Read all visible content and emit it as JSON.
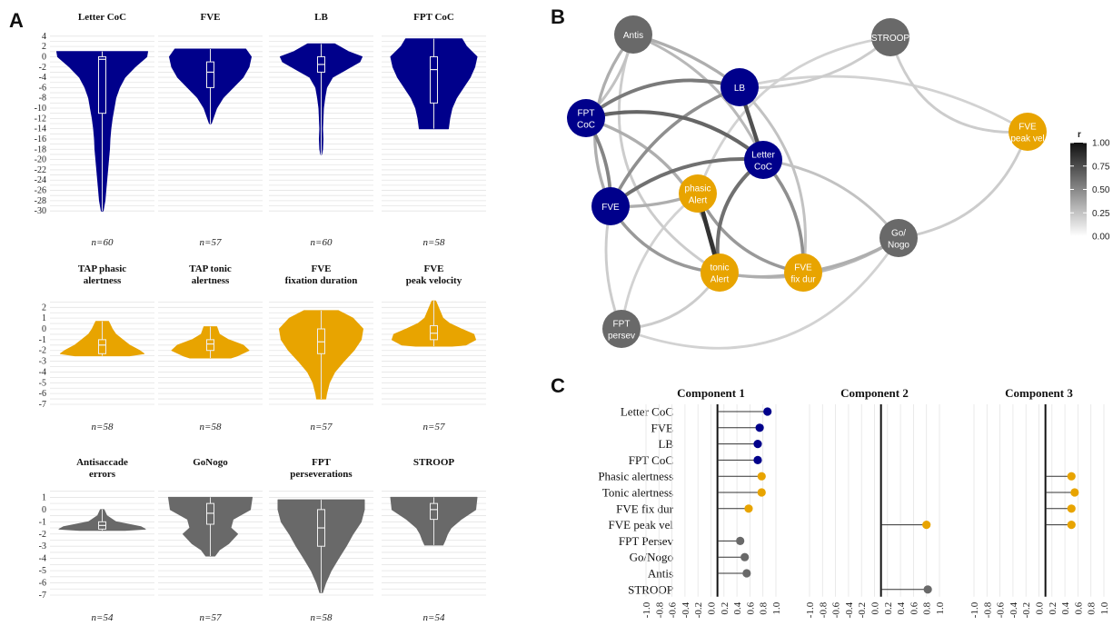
{
  "panel_labels": [
    "A",
    "B",
    "C"
  ],
  "colors": {
    "blue": "#00008b",
    "orange": "#e8a400",
    "gray": "#696969"
  },
  "chart_data": [
    {
      "type": "violin",
      "panel": "A",
      "subplots": [
        {
          "title": [
            "Letter CoC"
          ],
          "n": "n=60",
          "color": "blue",
          "ylim": [
            -30.5,
            4.5
          ],
          "ticks": [
            4,
            2,
            0,
            -2,
            -4,
            -6,
            -8,
            -10,
            -12,
            -14,
            -16,
            -18,
            -20,
            -22,
            -24,
            -26,
            -28,
            -30
          ],
          "min": -30,
          "max": 1,
          "q1": -11,
          "median": -0.5,
          "q3": 0
        },
        {
          "title": [
            "FVE"
          ],
          "n": "n=57",
          "color": "blue",
          "ylim": [
            -30.5,
            4.5
          ],
          "ticks": [],
          "min": -13,
          "max": 1.5,
          "q1": -6,
          "median": -3,
          "q3": -1
        },
        {
          "title": [
            "LB"
          ],
          "n": "n=60",
          "color": "blue",
          "ylim": [
            -30.5,
            4.5
          ],
          "ticks": [],
          "min": -19,
          "max": 2.5,
          "q1": -3,
          "median": -1.5,
          "q3": 0
        },
        {
          "title": [
            "FPT CoC"
          ],
          "n": "n=58",
          "color": "blue",
          "ylim": [
            -30.5,
            4.5
          ],
          "ticks": [],
          "min": -14,
          "max": 3.5,
          "q1": -9,
          "median": -2.5,
          "q3": 0
        },
        {
          "title": [
            "TAP phasic",
            "alertness"
          ],
          "n": "n=58",
          "color": "orange",
          "ylim": [
            -7,
            2.7
          ],
          "ticks": [
            2,
            1,
            0,
            -1,
            -2,
            -3,
            -4,
            -5,
            -6,
            -7
          ],
          "min": -2.5,
          "max": 0.7,
          "q1": -2.3,
          "median": -1.5,
          "q3": -1
        },
        {
          "title": [
            "TAP tonic",
            "alertness"
          ],
          "n": "n=58",
          "color": "orange",
          "ylim": [
            -7,
            2.7
          ],
          "ticks": [],
          "min": -2.7,
          "max": 0.2,
          "q1": -2,
          "median": -1.4,
          "q3": -1
        },
        {
          "title": [
            "FVE",
            "fixation duration"
          ],
          "n": "n=57",
          "color": "orange",
          "ylim": [
            -7,
            2.7
          ],
          "ticks": [],
          "min": -6.5,
          "max": 1.7,
          "q1": -2.3,
          "median": -1.2,
          "q3": 0
        },
        {
          "title": [
            "FVE",
            "peak velocity"
          ],
          "n": "n=57",
          "color": "orange",
          "ylim": [
            -7,
            2.7
          ],
          "ticks": [],
          "min": -1.6,
          "max": 2.6,
          "q1": -1,
          "median": -0.4,
          "q3": 0.3
        },
        {
          "title": [
            "Antisaccade",
            "errors"
          ],
          "n": "n=54",
          "color": "gray",
          "ylim": [
            -7,
            1.7
          ],
          "ticks": [
            1,
            0,
            -1,
            -2,
            -3,
            -4,
            -5,
            -6,
            -7
          ],
          "min": -1.7,
          "max": 0,
          "q1": -1.6,
          "median": -1.3,
          "q3": -1
        },
        {
          "title": [
            "GoNogo"
          ],
          "n": "n=57",
          "color": "gray",
          "ylim": [
            -7,
            1.7
          ],
          "ticks": [],
          "min": -3.8,
          "max": 1,
          "q1": -1.2,
          "median": -0.3,
          "q3": 0.5
        },
        {
          "title": [
            "FPT",
            "perseverations"
          ],
          "n": "n=58",
          "color": "gray",
          "ylim": [
            -7,
            1.7
          ],
          "ticks": [],
          "min": -6.8,
          "max": 0.8,
          "q1": -3,
          "median": -1.5,
          "q3": 0
        },
        {
          "title": [
            "STROOP"
          ],
          "n": "n=54",
          "color": "gray",
          "ylim": [
            -7,
            1.7
          ],
          "ticks": [],
          "min": -2.9,
          "max": 1,
          "q1": -0.8,
          "median": 0,
          "q3": 0.5
        }
      ]
    },
    {
      "type": "network",
      "panel": "B",
      "nodes": [
        {
          "id": "antis",
          "label": [
            "Antis"
          ],
          "color": "gray"
        },
        {
          "id": "stroop",
          "label": [
            "STROOP"
          ],
          "color": "gray"
        },
        {
          "id": "lb",
          "label": [
            "LB"
          ],
          "color": "blue"
        },
        {
          "id": "fptcoc",
          "label": [
            "FPT",
            "CoC"
          ],
          "color": "blue"
        },
        {
          "id": "fvepv",
          "label": [
            "FVE",
            "peak vel"
          ],
          "color": "orange"
        },
        {
          "id": "letter",
          "label": [
            "Letter",
            "CoC"
          ],
          "color": "blue"
        },
        {
          "id": "phasic",
          "label": [
            "phasic",
            "Alert"
          ],
          "color": "orange"
        },
        {
          "id": "fve",
          "label": [
            "FVE"
          ],
          "color": "blue"
        },
        {
          "id": "gonogo",
          "label": [
            "Go/",
            "Nogo"
          ],
          "color": "gray"
        },
        {
          "id": "tonic",
          "label": [
            "tonic",
            "Alert"
          ],
          "color": "orange"
        },
        {
          "id": "fvefd",
          "label": [
            "FVE",
            "fix dur"
          ],
          "color": "orange"
        },
        {
          "id": "fptpersev",
          "label": [
            "FPT",
            "persev"
          ],
          "color": "gray"
        }
      ],
      "edges": [
        {
          "from": "phasic",
          "to": "tonic",
          "r": 0.9
        },
        {
          "from": "lb",
          "to": "letter",
          "r": 0.75
        },
        {
          "from": "fptcoc",
          "to": "letter",
          "r": 0.65
        },
        {
          "from": "letter",
          "to": "fve",
          "r": 0.6
        },
        {
          "from": "letter",
          "to": "tonic",
          "r": 0.6
        },
        {
          "from": "fptcoc",
          "to": "lb",
          "r": 0.55
        },
        {
          "from": "fve",
          "to": "fptcoc",
          "r": 0.5
        },
        {
          "from": "fve",
          "to": "lb",
          "r": 0.45
        },
        {
          "from": "letter",
          "to": "fvefd",
          "r": 0.45
        },
        {
          "from": "fve",
          "to": "tonic",
          "r": 0.4
        },
        {
          "from": "phasic",
          "to": "fvefd",
          "r": 0.4
        },
        {
          "from": "tonic",
          "to": "fvefd",
          "r": 0.3
        },
        {
          "from": "fve",
          "to": "phasic",
          "r": 0.3
        },
        {
          "from": "antis",
          "to": "lb",
          "r": 0.3
        },
        {
          "from": "antis",
          "to": "fve",
          "r": 0.3
        },
        {
          "from": "fvefd",
          "to": "gonogo",
          "r": 0.3
        },
        {
          "from": "tonic",
          "to": "gonogo",
          "r": 0.25
        },
        {
          "from": "fptcoc",
          "to": "tonic",
          "r": 0.3
        },
        {
          "from": "antis",
          "to": "letter",
          "r": 0.25
        },
        {
          "from": "letter",
          "to": "gonogo",
          "r": 0.2
        },
        {
          "from": "fvepv",
          "to": "stroop",
          "r": 0.15
        },
        {
          "from": "fvepv",
          "to": "gonogo",
          "r": 0.15
        },
        {
          "from": "stroop",
          "to": "lb",
          "r": 0.15
        },
        {
          "from": "stroop",
          "to": "phasic",
          "r": 0.12
        },
        {
          "from": "fptpersev",
          "to": "fve",
          "r": 0.15
        },
        {
          "from": "fptpersev",
          "to": "tonic",
          "r": 0.15
        },
        {
          "from": "fptpersev",
          "to": "phasic",
          "r": 0.12
        },
        {
          "from": "fptpersev",
          "to": "gonogo",
          "r": 0.12
        },
        {
          "from": "antis",
          "to": "fptcoc",
          "r": 0.2
        },
        {
          "from": "antis",
          "to": "tonic",
          "r": 0.15
        },
        {
          "from": "lb",
          "to": "fvepv",
          "r": 0.12
        },
        {
          "from": "lb",
          "to": "fvefd",
          "r": 0.2
        }
      ],
      "legend": {
        "title": "r",
        "ticks": [
          "1.00",
          "0.75",
          "0.50",
          "0.25",
          "0.00"
        ],
        "placement": "right"
      }
    },
    {
      "type": "lollipop",
      "panel": "C",
      "categories": [
        "Letter CoC",
        "FVE",
        "LB",
        "FPT CoC",
        "Phasic alertness",
        "Tonic alertness",
        "FVE fix dur",
        "FVE peak vel",
        "FPT Persev",
        "Go/Nogo",
        "Antis",
        "STROOP"
      ],
      "category_colors": [
        "blue",
        "blue",
        "blue",
        "blue",
        "orange",
        "orange",
        "orange",
        "orange",
        "gray",
        "gray",
        "gray",
        "gray"
      ],
      "xlim": [
        -1.0,
        1.0
      ],
      "xticks": [
        "-1.0",
        "-0.8",
        "-0.6",
        "-0.4",
        "-0.2",
        "0.0",
        "0.2",
        "0.4",
        "0.6",
        "0.8",
        "1.0"
      ],
      "series": [
        {
          "name": "Component 1",
          "values": [
            0.87,
            0.75,
            0.72,
            0.72,
            0.78,
            0.78,
            0.58,
            null,
            0.45,
            0.52,
            0.55,
            null
          ]
        },
        {
          "name": "Component 2",
          "values": [
            null,
            null,
            null,
            null,
            null,
            null,
            null,
            0.8,
            null,
            null,
            null,
            0.82
          ]
        },
        {
          "name": "Component 3",
          "values": [
            null,
            null,
            null,
            null,
            0.5,
            0.55,
            0.5,
            0.5,
            null,
            null,
            null,
            null
          ]
        }
      ]
    }
  ]
}
